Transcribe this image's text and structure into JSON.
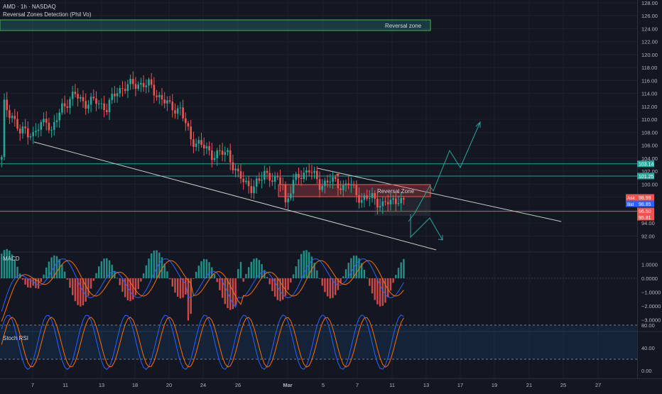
{
  "header": {
    "symbol_line": "AMD · 1h · NASDAQ",
    "indicator_line": "Reversal Zones Detection (Phil Vo)"
  },
  "indicator_box_label": "Reversal zone",
  "zone_label": "Reversal Zone",
  "price_axis": {
    "ticks": [
      "128.00",
      "126.00",
      "124.00",
      "122.00",
      "120.00",
      "118.00",
      "116.00",
      "114.00",
      "112.00",
      "110.00",
      "108.00",
      "106.00",
      "104.00",
      "102.00",
      "100.00",
      "94.00",
      "92.00"
    ],
    "badges": [
      {
        "text": "103.14",
        "color": "#26a69a"
      },
      {
        "text": "101.25",
        "color": "#26a69a"
      },
      {
        "text": "98.99",
        "prefix": "Ask",
        "color": "#ef5350"
      },
      {
        "text": "98.85",
        "prefix": "Bid",
        "color": "#2962ff"
      },
      {
        "text": "96.50",
        "color": "#ef5350"
      },
      {
        "text": "95.81",
        "color": "#ef5350"
      }
    ]
  },
  "macd": {
    "title": "MACD",
    "ticks": [
      "1.0000",
      "0.0000",
      "−1.0000",
      "−2.0000",
      "−3.0000"
    ]
  },
  "stoch": {
    "title": "Stoch RSI",
    "ticks": [
      "80.00",
      "40.00",
      "0.00"
    ]
  },
  "time_axis": {
    "labels": [
      "7",
      "11",
      "13",
      "18",
      "20",
      "24",
      "26",
      "Mar",
      "5",
      "7",
      "11",
      "13",
      "17",
      "19",
      "21",
      "25",
      "27"
    ]
  },
  "colors": {
    "background": "#131722",
    "bull": "#26a69a",
    "bear": "#ef5350",
    "teal_line": "#26a69a",
    "red_line": "#ef5350",
    "macd_line": "#2962ff",
    "signal_line": "#ff6d00",
    "stoch_k": "#2962ff",
    "stoch_d": "#ff6d00"
  }
}
